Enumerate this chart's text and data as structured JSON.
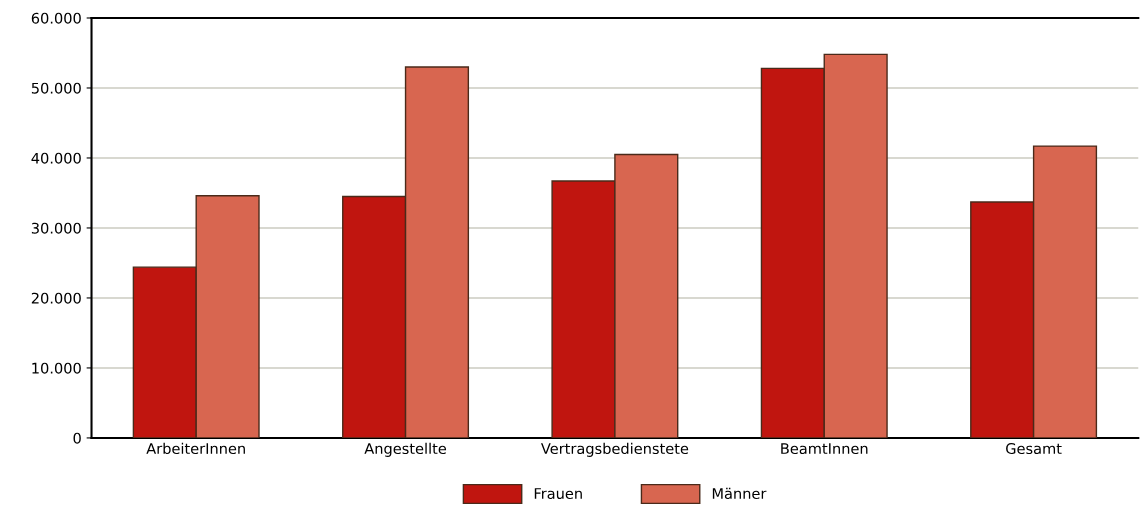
{
  "chart_data": {
    "type": "bar",
    "categories": [
      "ArbeiterInnen",
      "Angestellte",
      "Vertragsbedienstete",
      "BeamtInnen",
      "Gesamt"
    ],
    "series": [
      {
        "name": "Frauen",
        "color": "#c0150f",
        "values": [
          24400,
          34500,
          36700,
          52800,
          33700
        ]
      },
      {
        "name": "Männer",
        "color": "#d86650",
        "values": [
          34600,
          53000,
          40500,
          54800,
          41700
        ]
      }
    ],
    "ylim": [
      0,
      60000
    ],
    "yticks": [
      {
        "value": 0,
        "label": "0"
      },
      {
        "value": 10000,
        "label": "10.000"
      },
      {
        "value": 20000,
        "label": "20.000"
      },
      {
        "value": 30000,
        "label": "30.000"
      },
      {
        "value": 40000,
        "label": "40.000"
      },
      {
        "value": 50000,
        "label": "50.000"
      },
      {
        "value": 60000,
        "label": "60.000"
      }
    ],
    "grid": "y",
    "legend": "bottom"
  }
}
